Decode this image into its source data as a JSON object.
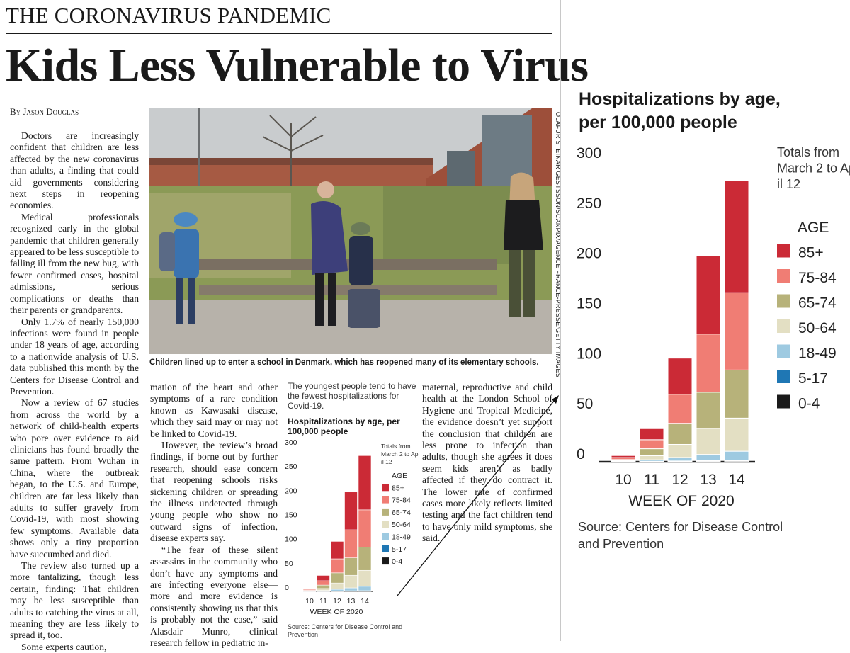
{
  "page": {
    "section": "THE CORONAVIRUS PANDEMIC",
    "headline": "Kids Less Vulnerable to Virus",
    "byline": "By Jason Douglas",
    "photo_caption": "Children lined up to enter a school in Denmark, which has reopened many of its elementary schools.",
    "photo_credit": "OLAFUR STEINAR GESTSSON/SCANPIX/AGENCE FRANCE-PRESSE/GETTY IMAGES"
  },
  "article": {
    "col1": [
      "Doctors are increasingly confident that children are less affected by the new coronavirus than adults, a finding that could aid governments considering next steps in reopening economies.",
      "Medical professionals recognized early in the global pandemic that children generally appeared to be less susceptible to falling ill from the new bug, with fewer confirmed cases, hospital admissions, serious complications or deaths than their parents or grandparents.",
      "Only 1.7% of nearly 150,000 infections were found in people under 18 years of age, according to a nationwide analysis of U.S. data published this month by the Centers for Disease Control and Prevention.",
      "Now a review of 67 studies from across the world by a network of child-health experts who pore over evidence to aid clinicians has found broadly the same pattern. From Wuhan in China, where the outbreak began, to the U.S. and Europe, children are far less likely than adults to suffer gravely from Covid-19, with most showing few symptoms. Available data shows only a tiny proportion have succumbed and died.",
      "The review also turned up a more tantalizing, though less certain, finding: That children may be less susceptible than adults to catching the virus at all, meaning they are less likely to spread it, too.",
      "Some experts caution,"
    ],
    "col2": [
      "mation of the heart and other symptoms of a rare condition known as Kawasaki disease, which they said may or may not be linked to Covid-19.",
      "However, the review’s broad findings, if borne out by further research, should ease concern that reopening schools risks sickening children or spreading the illness undetected through young people who show no outward signs of infection, disease experts say.",
      "“The fear of these silent assassins in the community who don’t have any symptoms and are infecting everyone else—more and more evidence is consistently showing us that this is probably not the case,” said Alasdair Munro, clinical research fellow in pediatric in-"
    ],
    "col3": [
      "maternal, reproductive and child health at the London School of Hygiene and Tropical Medicine, the evidence doesn’t yet support the conclusion that children are less prone to infection than adults, though she agrees it does seem kids aren’t as badly affected if they do contract it. The lower rate of confirmed cases more likely reflects limited testing and the fact children tend to have only mild symptoms, she said."
    ]
  },
  "small_chart": {
    "intro": "The youngest people tend to have the fewest hospitalizations for Covid-19.",
    "title": "Hospitalizations by age, per 100,000 people",
    "source": "Source: Centers for Disease Control and Prevention"
  },
  "big_chart": {
    "title": "Hospitalizations by age, per 100,000 people",
    "source": "Source: Centers for Disease Control and Prevention"
  },
  "chart_data": {
    "type": "bar",
    "stacked": true,
    "title": "Hospitalizations by age, per 100,000 people",
    "note": "Totals from March 2 to April 12",
    "legend_title": "AGE",
    "legend_placement": "right",
    "xlabel": "WEEK OF 2020",
    "ylabel": "",
    "categories": [
      "10",
      "11",
      "12",
      "13",
      "14"
    ],
    "yticks": [
      0,
      50,
      100,
      150,
      200,
      250,
      300
    ],
    "ylim": [
      0,
      300
    ],
    "series": [
      {
        "name": "0-4",
        "color": "#1a1a1a",
        "values": [
          0.1,
          0.3,
          0.5,
          0.8,
          0.9
        ]
      },
      {
        "name": "5-17",
        "color": "#1f77b4",
        "values": [
          0.1,
          0.2,
          0.3,
          0.5,
          0.6
        ]
      },
      {
        "name": "18-49",
        "color": "#9ecae1",
        "values": [
          0.3,
          1.5,
          3.5,
          6,
          9
        ]
      },
      {
        "name": "50-64",
        "color": "#e3dfc3",
        "values": [
          0.7,
          4,
          13,
          26,
          33
        ]
      },
      {
        "name": "65-74",
        "color": "#b7b27a",
        "values": [
          1,
          7,
          21,
          36,
          48
        ]
      },
      {
        "name": "75-84",
        "color": "#f07d74",
        "values": [
          2,
          9,
          29,
          58,
          77
        ]
      },
      {
        "name": "85+",
        "color": "#cb2a36",
        "values": [
          2,
          11,
          36,
          78,
          112
        ]
      }
    ]
  }
}
